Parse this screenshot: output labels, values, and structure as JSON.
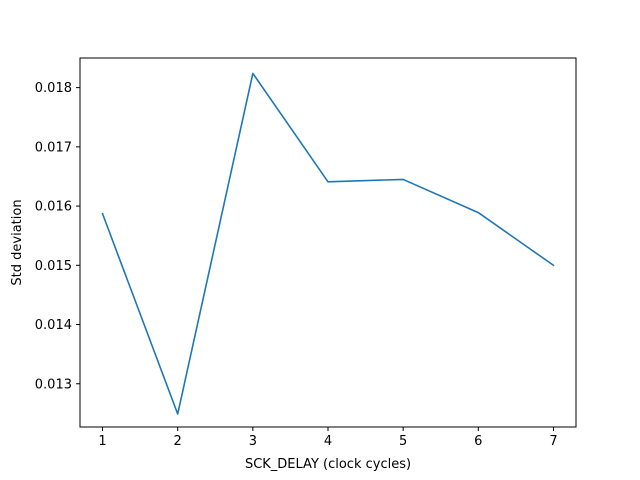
{
  "chart_data": {
    "type": "line",
    "title": "",
    "xlabel": "SCK_DELAY (clock cycles)",
    "ylabel": "Std deviation",
    "xlim": [
      0.7,
      7.3
    ],
    "ylim": [
      0.01227,
      0.0185
    ],
    "xticks": [
      1,
      2,
      3,
      4,
      5,
      6,
      7
    ],
    "yticks": [
      0.013,
      0.014,
      0.015,
      0.016,
      0.017,
      0.018
    ],
    "ytick_labels": [
      "0.013",
      "0.014",
      "0.015",
      "0.016",
      "0.017",
      "0.018"
    ],
    "grid": false,
    "series": [
      {
        "color": "#1f77b4",
        "x": [
          1,
          2,
          3,
          4,
          5,
          6,
          7
        ],
        "y": [
          0.01587,
          0.01249,
          0.01824,
          0.01641,
          0.01645,
          0.01589,
          0.015
        ]
      }
    ]
  }
}
